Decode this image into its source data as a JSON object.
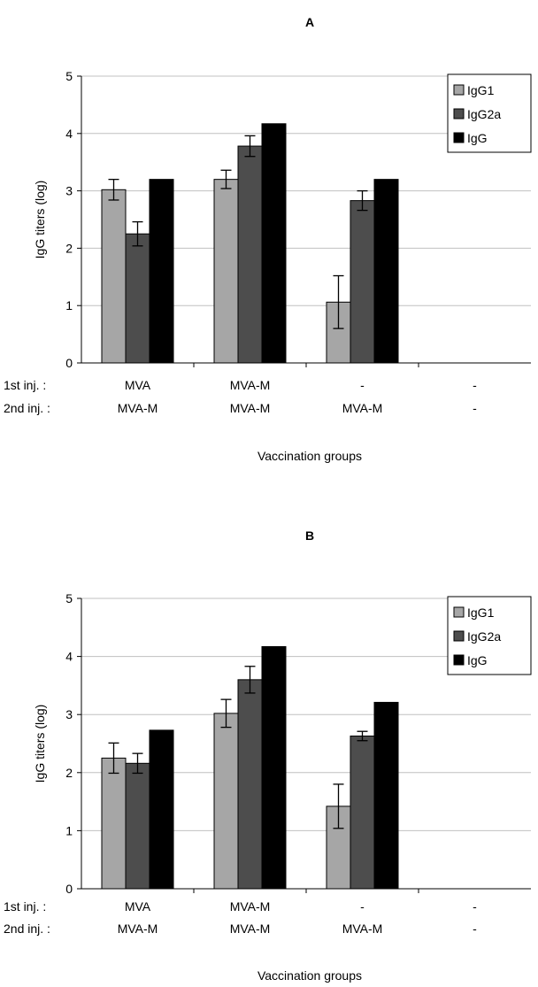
{
  "colors": {
    "IgG1": "#a6a6a6",
    "IgG2a": "#4d4d4d",
    "IgG": "#000000",
    "grid": "#c0c0c0"
  },
  "chart_data": [
    {
      "type": "bar",
      "title": "A",
      "xlabel": "Vaccination groups",
      "ylabel": "IgG titers (log)",
      "ylim": [
        0,
        5
      ],
      "yticks": [
        "0",
        "1",
        "2",
        "3",
        "4",
        "5"
      ],
      "grid": true,
      "legend_position": "top-right",
      "row_labels": [
        "1st inj. :",
        "2nd inj. :"
      ],
      "categories": [
        {
          "first": "MVA",
          "second": "MVA-M"
        },
        {
          "first": "MVA-M",
          "second": "MVA-M"
        },
        {
          "first": "-",
          "second": "MVA-M"
        },
        {
          "first": "-",
          "second": "-"
        }
      ],
      "series": [
        {
          "name": "IgG1",
          "values": [
            3.02,
            3.2,
            1.06,
            0
          ],
          "errors": [
            0.18,
            0.16,
            0.46,
            0
          ]
        },
        {
          "name": "IgG2a",
          "values": [
            2.25,
            3.78,
            2.83,
            0
          ],
          "errors": [
            0.21,
            0.18,
            0.17,
            0
          ]
        },
        {
          "name": "IgG",
          "values": [
            3.2,
            4.17,
            3.2,
            0
          ],
          "errors": [
            0,
            0,
            0,
            0
          ]
        }
      ]
    },
    {
      "type": "bar",
      "title": "B",
      "xlabel": "Vaccination groups",
      "ylabel": "IgG titers (log)",
      "ylim": [
        0,
        5
      ],
      "yticks": [
        "0",
        "1",
        "2",
        "3",
        "4",
        "5"
      ],
      "grid": true,
      "legend_position": "top-right",
      "row_labels": [
        "1st  inj. :",
        "2nd inj. :"
      ],
      "categories": [
        {
          "first": "MVA",
          "second": "MVA-M"
        },
        {
          "first": "MVA-M",
          "second": "MVA-M"
        },
        {
          "first": "-",
          "second": "MVA-M"
        },
        {
          "first": "-",
          "second": "-"
        }
      ],
      "series": [
        {
          "name": "IgG1",
          "values": [
            2.25,
            3.02,
            1.42,
            0
          ],
          "errors": [
            0.26,
            0.24,
            0.38,
            0
          ]
        },
        {
          "name": "IgG2a",
          "values": [
            2.16,
            3.6,
            2.63,
            0
          ],
          "errors": [
            0.17,
            0.23,
            0.08,
            0
          ]
        },
        {
          "name": "IgG",
          "values": [
            2.73,
            4.17,
            3.21,
            0
          ],
          "errors": [
            0,
            0,
            0,
            0
          ]
        }
      ]
    }
  ]
}
